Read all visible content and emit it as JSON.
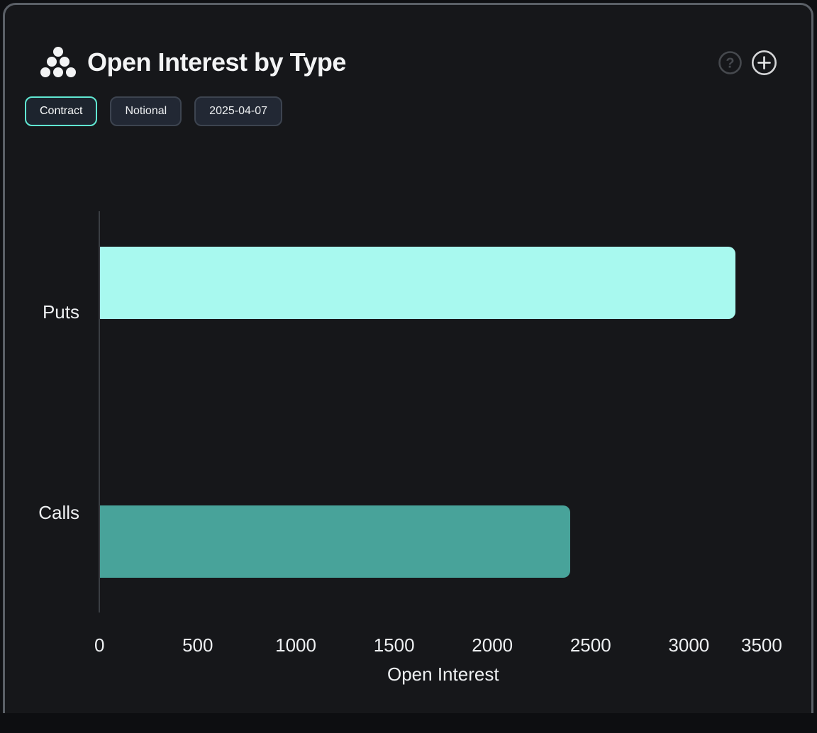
{
  "header": {
    "title": "Open Interest by Type",
    "icons": {
      "logo": "cluster-dots",
      "help": "question-mark-circle",
      "add": "plus-circle"
    }
  },
  "toolbar": {
    "buttons": [
      {
        "label": "Contract",
        "selected": true
      },
      {
        "label": "Notional",
        "selected": false
      },
      {
        "label": "2025-04-07",
        "selected": false
      }
    ]
  },
  "chart_data": {
    "type": "bar",
    "orientation": "horizontal",
    "title": "Open Interest by Type",
    "categories": [
      "Puts",
      "Calls"
    ],
    "values": [
      3236,
      2393
    ],
    "bar_colors": [
      "#a8f9ef",
      "#48a39a"
    ],
    "xlabel": "Open Interest",
    "xlim": [
      0,
      3500
    ],
    "xticks": [
      0,
      500,
      1000,
      1500,
      2000,
      2500,
      3000,
      3500
    ],
    "grid": false,
    "legend": "none"
  },
  "colors": {
    "card_background": "#16171a",
    "card_border": "#5b6067",
    "accent_mint": "#60e8d2",
    "puts_bar": "#a8f9ef",
    "calls_bar": "#48a39a",
    "axis_text": "#eef0f2"
  }
}
